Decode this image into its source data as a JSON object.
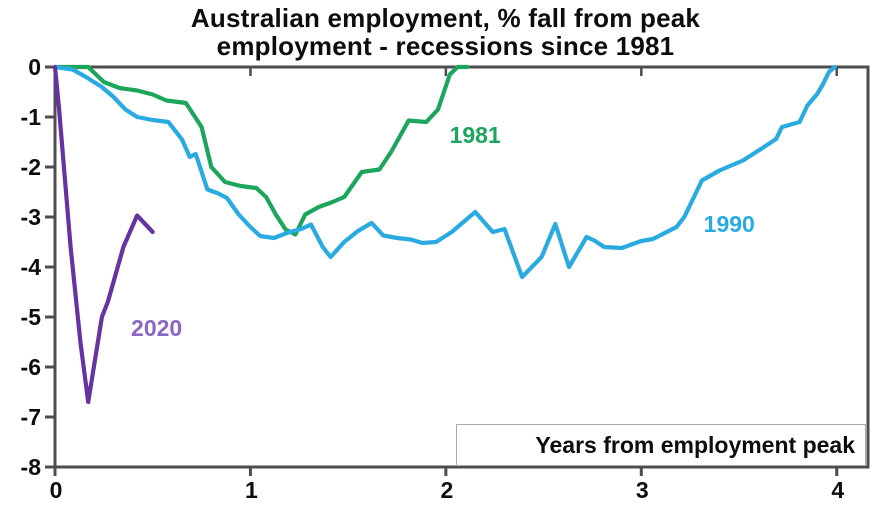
{
  "title": {
    "line1": "Australian employment, % fall from peak",
    "line2": "employment - recessions since 1981"
  },
  "x_axis": {
    "label": "Years from employment peak",
    "tick_labels": [
      "0",
      "1",
      "2",
      "3",
      "4"
    ]
  },
  "y_axis": {
    "tick_labels": [
      "0",
      "-1",
      "-2",
      "-3",
      "-4",
      "-5",
      "-6",
      "-7",
      "-8"
    ]
  },
  "colors": {
    "frame": "#4d4d50",
    "text": "#0d0d0d",
    "background": "#ffffff",
    "series_1981": "#1ca65c",
    "series_1990": "#29abe2",
    "series_2020": "#6633a2",
    "label_2020": "#8b66c6"
  },
  "chart_data": {
    "type": "line",
    "title": "Australian employment, % fall from peak employment - recessions since 1981",
    "xlabel": "Years from employment peak",
    "ylabel": "% fall from peak employment",
    "xlim": [
      0,
      4.16
    ],
    "ylim": [
      -8,
      0
    ],
    "x_ticks": [
      0,
      1,
      2,
      3,
      4
    ],
    "y_ticks": [
      0,
      -1,
      -2,
      -3,
      -4,
      -5,
      -6,
      -7,
      -8
    ],
    "grid": false,
    "legend_position": "inline-labels",
    "series": [
      {
        "name": "1981",
        "color": "#1ca65c",
        "label_color": "#1ca65c",
        "label_at": [
          2.15,
          -1.36
        ],
        "points": [
          [
            0,
            0
          ],
          [
            0.17,
            0
          ],
          [
            0.25,
            -0.3
          ],
          [
            0.33,
            -0.42
          ],
          [
            0.42,
            -0.47
          ],
          [
            0.5,
            -0.55
          ],
          [
            0.57,
            -0.67
          ],
          [
            0.67,
            -0.72
          ],
          [
            0.75,
            -1.2
          ],
          [
            0.8,
            -2.0
          ],
          [
            0.87,
            -2.3
          ],
          [
            0.95,
            -2.38
          ],
          [
            1.03,
            -2.42
          ],
          [
            1.08,
            -2.6
          ],
          [
            1.13,
            -2.95
          ],
          [
            1.18,
            -3.25
          ],
          [
            1.23,
            -3.35
          ],
          [
            1.28,
            -2.95
          ],
          [
            1.35,
            -2.8
          ],
          [
            1.42,
            -2.7
          ],
          [
            1.48,
            -2.6
          ],
          [
            1.57,
            -2.1
          ],
          [
            1.66,
            -2.05
          ],
          [
            1.72,
            -1.7
          ],
          [
            1.81,
            -1.07
          ],
          [
            1.9,
            -1.1
          ],
          [
            1.96,
            -0.85
          ],
          [
            2.02,
            -0.15
          ],
          [
            2.06,
            0
          ],
          [
            2.11,
            0
          ]
        ]
      },
      {
        "name": "1990",
        "color": "#29abe2",
        "label_color": "#29abe2",
        "label_at": [
          3.45,
          -3.14
        ],
        "points": [
          [
            0,
            0
          ],
          [
            0.09,
            -0.05
          ],
          [
            0.15,
            -0.18
          ],
          [
            0.24,
            -0.4
          ],
          [
            0.3,
            -0.6
          ],
          [
            0.36,
            -0.85
          ],
          [
            0.42,
            -1.0
          ],
          [
            0.5,
            -1.06
          ],
          [
            0.58,
            -1.1
          ],
          [
            0.65,
            -1.45
          ],
          [
            0.69,
            -1.8
          ],
          [
            0.72,
            -1.74
          ],
          [
            0.78,
            -2.45
          ],
          [
            0.83,
            -2.52
          ],
          [
            0.88,
            -2.62
          ],
          [
            0.94,
            -2.95
          ],
          [
            1.0,
            -3.2
          ],
          [
            1.05,
            -3.38
          ],
          [
            1.12,
            -3.42
          ],
          [
            1.2,
            -3.3
          ],
          [
            1.26,
            -3.24
          ],
          [
            1.31,
            -3.15
          ],
          [
            1.37,
            -3.6
          ],
          [
            1.41,
            -3.8
          ],
          [
            1.48,
            -3.5
          ],
          [
            1.55,
            -3.28
          ],
          [
            1.62,
            -3.12
          ],
          [
            1.68,
            -3.37
          ],
          [
            1.75,
            -3.42
          ],
          [
            1.82,
            -3.45
          ],
          [
            1.88,
            -3.52
          ],
          [
            1.95,
            -3.5
          ],
          [
            2.03,
            -3.3
          ],
          [
            2.15,
            -2.9
          ],
          [
            2.24,
            -3.3
          ],
          [
            2.3,
            -3.24
          ],
          [
            2.39,
            -4.2
          ],
          [
            2.49,
            -3.8
          ],
          [
            2.56,
            -3.14
          ],
          [
            2.63,
            -4.0
          ],
          [
            2.72,
            -3.4
          ],
          [
            2.76,
            -3.47
          ],
          [
            2.81,
            -3.6
          ],
          [
            2.9,
            -3.62
          ],
          [
            3.0,
            -3.48
          ],
          [
            3.06,
            -3.44
          ],
          [
            3.18,
            -3.2
          ],
          [
            3.22,
            -3.0
          ],
          [
            3.31,
            -2.27
          ],
          [
            3.4,
            -2.07
          ],
          [
            3.52,
            -1.87
          ],
          [
            3.6,
            -1.67
          ],
          [
            3.69,
            -1.44
          ],
          [
            3.72,
            -1.2
          ],
          [
            3.81,
            -1.1
          ],
          [
            3.85,
            -0.77
          ],
          [
            3.9,
            -0.54
          ],
          [
            3.93,
            -0.34
          ],
          [
            3.96,
            -0.1
          ],
          [
            3.99,
            0
          ]
        ]
      },
      {
        "name": "2020",
        "color": "#6633a2",
        "label_color": "#8b66c6",
        "label_at": [
          0.52,
          -5.22
        ],
        "points": [
          [
            0,
            0
          ],
          [
            0.02,
            -0.8
          ],
          [
            0.08,
            -3.6
          ],
          [
            0.13,
            -5.5
          ],
          [
            0.17,
            -6.7
          ],
          [
            0.24,
            -5.0
          ],
          [
            0.27,
            -4.7
          ],
          [
            0.35,
            -3.6
          ],
          [
            0.42,
            -2.97
          ],
          [
            0.5,
            -3.3
          ]
        ]
      }
    ]
  }
}
